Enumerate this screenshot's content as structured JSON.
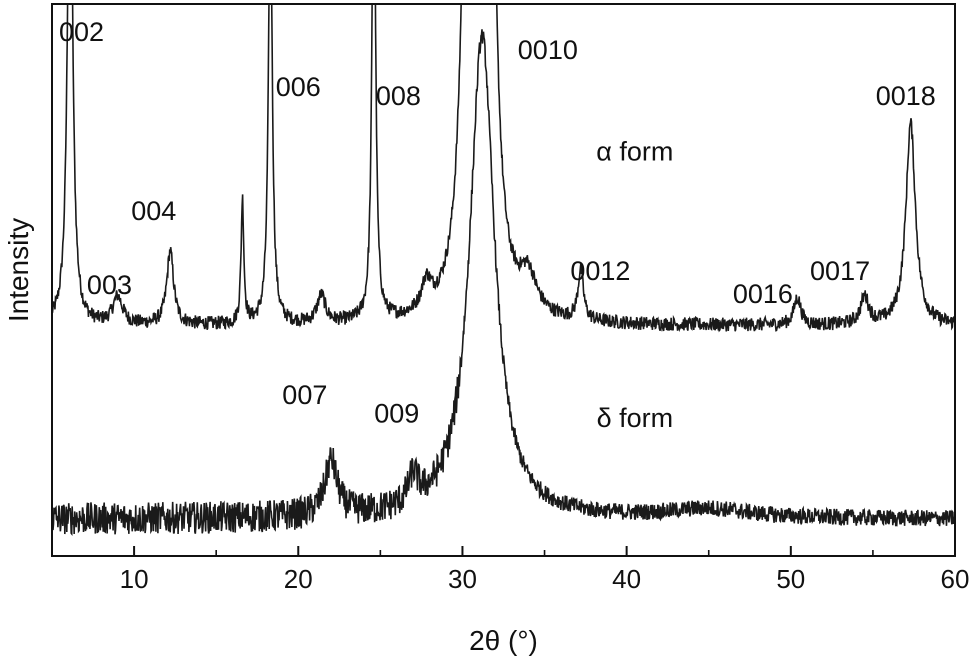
{
  "chart_data": {
    "type": "line",
    "title": "",
    "xlabel": "2θ (°)",
    "ylabel": "Intensity",
    "xlim": [
      5,
      60
    ],
    "xticks": [
      10,
      20,
      30,
      40,
      50,
      60
    ],
    "xtick_labels": [
      "10",
      "20",
      "30",
      "40",
      "50",
      "60"
    ],
    "yticks": [],
    "grid": false,
    "legend": "none",
    "line_color": "#1a1a1a",
    "series": [
      {
        "name": "α form",
        "baseline": 0.42,
        "peaks": [
          {
            "x": 6.1,
            "height": 1.2,
            "width": 0.18
          },
          {
            "x": 9.0,
            "height": 0.06,
            "width": 0.35
          },
          {
            "x": 12.2,
            "height": 0.16,
            "width": 0.25
          },
          {
            "x": 16.6,
            "height": 0.27,
            "width": 0.1
          },
          {
            "x": 18.3,
            "height": 0.95,
            "width": 0.14
          },
          {
            "x": 21.4,
            "height": 0.06,
            "width": 0.3
          },
          {
            "x": 24.6,
            "height": 1.1,
            "width": 0.13
          },
          {
            "x": 27.8,
            "height": 0.06,
            "width": 0.35
          },
          {
            "x": 30.4,
            "height": 1.5,
            "width": 0.4
          },
          {
            "x": 31.6,
            "height": 1.5,
            "width": 0.4
          },
          {
            "x": 34.0,
            "height": 0.08,
            "width": 0.6
          },
          {
            "x": 37.2,
            "height": 0.11,
            "width": 0.2
          },
          {
            "x": 50.4,
            "height": 0.06,
            "width": 0.25
          },
          {
            "x": 54.5,
            "height": 0.06,
            "width": 0.3
          },
          {
            "x": 57.3,
            "height": 0.44,
            "width": 0.35
          }
        ]
      },
      {
        "name": "δ form",
        "baseline": 0.0,
        "peaks": [
          {
            "x": 22.0,
            "height": 0.12,
            "width": 0.45
          },
          {
            "x": 27.0,
            "height": 0.06,
            "width": 0.35
          },
          {
            "x": 31.2,
            "height": 1.05,
            "width": 0.9
          },
          {
            "x": 45.0,
            "height": 0.02,
            "width": 3.0
          }
        ]
      }
    ],
    "annotations": [
      {
        "text": "002",
        "x": 6.8,
        "y": 1.04
      },
      {
        "text": "003",
        "x": 8.5,
        "y": 0.49
      },
      {
        "text": "004",
        "x": 11.2,
        "y": 0.65
      },
      {
        "text": "006",
        "x": 20.0,
        "y": 0.92
      },
      {
        "text": "007",
        "x": 20.4,
        "y": 0.25
      },
      {
        "text": "008",
        "x": 26.1,
        "y": 0.9
      },
      {
        "text": "009",
        "x": 26.0,
        "y": 0.21
      },
      {
        "text": "0010",
        "x": 35.2,
        "y": 1.0
      },
      {
        "text": "0012",
        "x": 38.4,
        "y": 0.52
      },
      {
        "text": "0016",
        "x": 48.3,
        "y": 0.47
      },
      {
        "text": "0017",
        "x": 53.0,
        "y": 0.52
      },
      {
        "text": "0018",
        "x": 57.0,
        "y": 0.9
      },
      {
        "text": "α form",
        "x": 40.5,
        "y": 0.78
      },
      {
        "text": "δ form",
        "x": 40.5,
        "y": 0.2
      }
    ]
  }
}
